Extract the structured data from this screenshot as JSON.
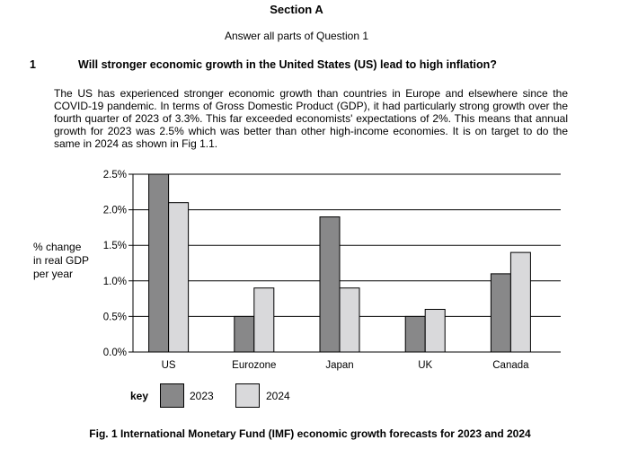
{
  "section": {
    "title": "Section A",
    "instruction": "Answer all parts of Question 1"
  },
  "question": {
    "number": "1",
    "title": "Will stronger economic growth in the United States (US) lead to high inflation?",
    "paragraph": "The US has experienced stronger economic growth than countries in Europe and elsewhere since the COVID-19 pandemic. In terms of Gross Domestic Product (GDP), it had particularly strong growth over the fourth quarter of 2023 of 3.3%. This far exceeded economists' expectations of 2%. This means that annual growth for 2023 was 2.5% which was better than other high-income economies. It is on target to do the same in 2024 as shown in Fig 1.1."
  },
  "figure": {
    "ylabel_lines": [
      "% change",
      "in real GDP",
      "per year"
    ],
    "key_label": "key",
    "caption": "Fig. 1 International Monetary Fund (IMF) economic growth forecasts for 2023 and 2024"
  },
  "colors": {
    "series_2023": "#888889",
    "series_2024": "#d9d9db",
    "outline": "#000000"
  },
  "chart_data": {
    "type": "bar",
    "title": "International Monetary Fund (IMF) economic growth forecasts for 2023 and 2024",
    "ylabel": "% change in real GDP per year",
    "xlabel": "",
    "categories": [
      "US",
      "Eurozone",
      "Japan",
      "UK",
      "Canada"
    ],
    "series": [
      {
        "name": "2023",
        "values": [
          2.5,
          0.5,
          1.9,
          0.5,
          1.1
        ]
      },
      {
        "name": "2024",
        "values": [
          2.1,
          0.9,
          0.9,
          0.6,
          1.4
        ]
      }
    ],
    "yticks": [
      "0.0%",
      "0.5%",
      "1.0%",
      "1.5%",
      "2.0%",
      "2.5%"
    ],
    "ylim": [
      0,
      2.5
    ],
    "grid": true,
    "legend": "bottom"
  }
}
